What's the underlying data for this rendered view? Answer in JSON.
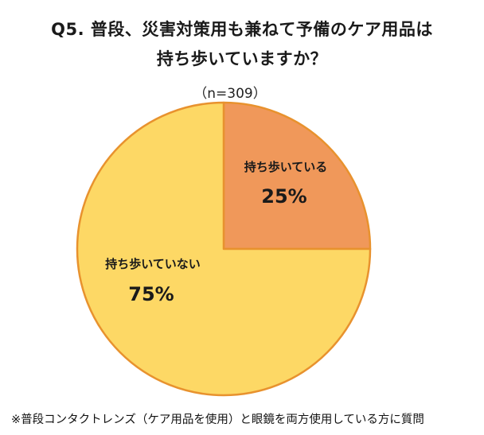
{
  "header": {
    "title_line1": "Q5. 普段、災害対策用も兼ねて予備のケア用品は",
    "title_line2": "持ち歩いていますか？",
    "sample_size": "（n=309）"
  },
  "chart_data": {
    "type": "pie",
    "title": "Q5. 普段、災害対策用も兼ねて予備のケア用品は 持ち歩いていますか？",
    "subtitle": "（n=309）",
    "slices": [
      {
        "label": "持ち歩いている",
        "value": 25,
        "value_label": "25%",
        "color": "#F0985A"
      },
      {
        "label": "持ち歩いていない",
        "value": 75,
        "value_label": "75%",
        "color": "#FDD865"
      }
    ],
    "start_angle": "12 o'clock",
    "direction": "clockwise",
    "border_color": "#E8922E",
    "legend": "none"
  },
  "footnote": "※普段コンタクトレンズ（ケア用品を使用）と眼鏡を両方使用している方に質問"
}
